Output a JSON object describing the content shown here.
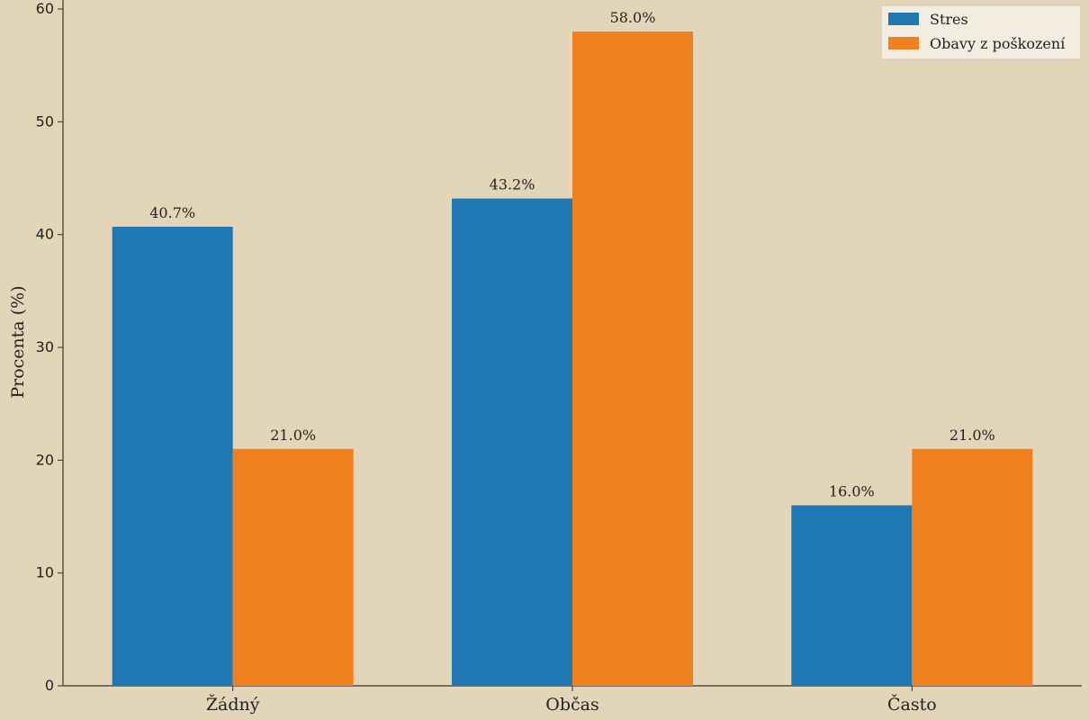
{
  "chart_data": {
    "type": "bar",
    "categories": [
      "Žádný",
      "Občas",
      "Často"
    ],
    "series": [
      {
        "name": "Stres",
        "values": [
          40.7,
          43.2,
          16.0
        ],
        "color": "#1f77b4"
      },
      {
        "name": "Obavy z poškození",
        "values": [
          21.0,
          58.0,
          21.0
        ],
        "color": "#f07f1e"
      }
    ],
    "value_labels": [
      [
        "40.7%",
        "43.2%",
        "16.0%"
      ],
      [
        "21.0%",
        "58.0%",
        "21.0%"
      ]
    ],
    "title": "",
    "xlabel": "",
    "ylabel": "Procenta (%)",
    "ylim": [
      0,
      60
    ],
    "yticks": [
      0,
      10,
      20,
      30,
      40,
      50,
      60
    ],
    "grid": false,
    "legend_position": "top-right",
    "background_color": "#e3d5b8"
  }
}
